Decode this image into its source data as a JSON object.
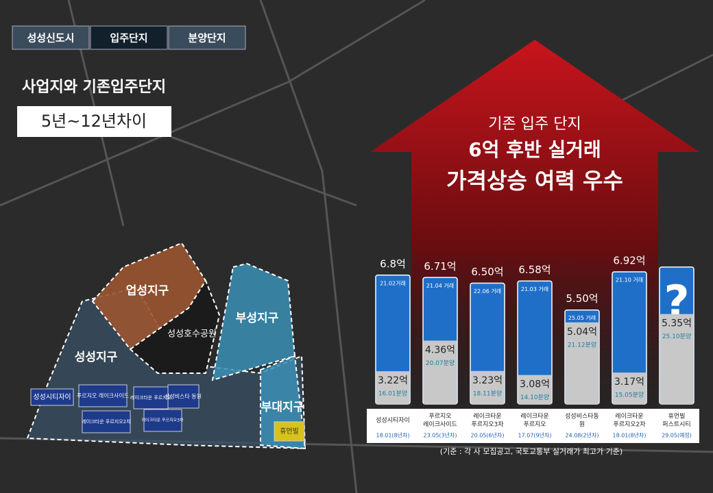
{
  "tabs": [
    "성성신도시",
    "입주단지",
    "분양단지"
  ],
  "headline": "사업지와 기존입주단지",
  "badge": "5년~12년차이",
  "arrow_text": [
    "기존 입주 단지",
    "6억 후반 실거래",
    "가격상승 여력 우수"
  ],
  "districts": [
    "업성지구",
    "성성지구",
    "부성지구",
    "부대지구",
    "성성호수공원"
  ],
  "sites": [
    "성성시티자이",
    "푸르지오 레이크사이드",
    "레이크타운 푸르지오",
    "레이크타운 푸르지오2차",
    "성성비스타 동원",
    "레이크타운 푸르지오3차",
    "휴먼빌"
  ],
  "footnote": "(기준 : 각 사 모집공고, 국토교통부 실거래가 최고가 기준)",
  "unknown_label": "?",
  "chart_data": {
    "type": "bar",
    "categories": [
      [
        "성성시티자이"
      ],
      [
        "푸르지오",
        "레이크사이드"
      ],
      [
        "레이크타운",
        "푸르지오3차"
      ],
      [
        "레이크타운",
        "푸르지오"
      ],
      [
        "성성비스타동",
        "원"
      ],
      [
        "레이크타운",
        "푸르지오2차"
      ],
      [
        "휴먼빌",
        "퍼스트시티"
      ]
    ],
    "dates": [
      "18.01(8년차)",
      "23.05(3년차)",
      "20.05(6년차)",
      "17.07(9년차)",
      "24.08(2년차)",
      "18.01(8년차)",
      "29.05(예정)"
    ],
    "ylim": [
      2,
      7.1
    ],
    "series": [
      {
        "color": "#1f6fc9",
        "values": [
          6.8,
          6.71,
          6.5,
          6.58,
          5.5,
          6.92,
          null
        ],
        "value_labels": [
          "6.8억",
          "6.71억",
          "6.50억",
          "6.58억",
          "5.50억",
          "6.92억",
          null
        ],
        "notes": [
          "21.02거래",
          "21.04 거래",
          "22.06 거래",
          "21.03 거래",
          "25.05 거래",
          "21.10 거래",
          null
        ]
      },
      {
        "color": "#c8c8c8",
        "values": [
          3.22,
          4.36,
          3.23,
          3.08,
          5.04,
          3.17,
          5.35
        ],
        "value_labels": [
          "3.22억",
          "4.36억",
          "3.23억",
          "3.08억",
          "5.04억",
          "3.17억",
          "5.35억"
        ],
        "notes": [
          "16.01분양",
          "20.07분양",
          "18.11분양",
          "14.10분양",
          "21.12분양",
          "15.05분양",
          "25.10분양"
        ]
      }
    ]
  }
}
